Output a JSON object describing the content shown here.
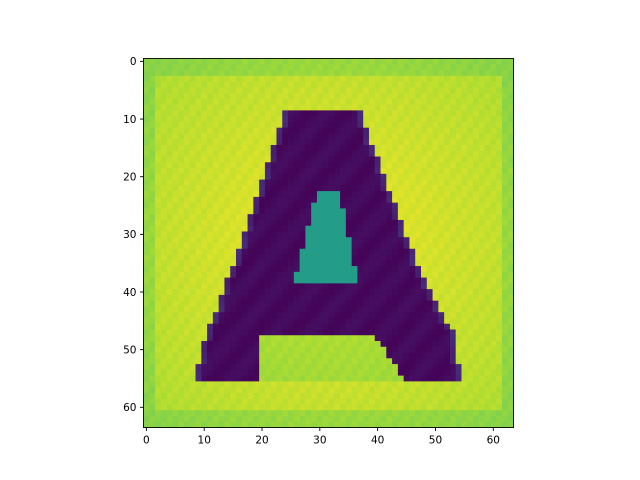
{
  "chart_data": {
    "type": "heatmap",
    "title": "",
    "xlabel": "",
    "ylabel": "",
    "colormap": "viridis",
    "grid": false,
    "image_shape": [
      64,
      64
    ],
    "xlim": [
      -0.5,
      63.5
    ],
    "ylim": [
      63.5,
      -0.5
    ],
    "xticks": [
      0,
      10,
      20,
      30,
      40,
      50,
      60
    ],
    "yticks": [
      0,
      10,
      20,
      30,
      40,
      50,
      60
    ],
    "xtick_labels": [
      "0",
      "10",
      "20",
      "30",
      "40",
      "50",
      "60"
    ],
    "ytick_labels": [
      "0",
      "10",
      "20",
      "30",
      "40",
      "50",
      "60"
    ],
    "value_scale": "normalized 0-1 (colormap position)",
    "background_level": 0.9,
    "letter_level": 0.03,
    "letter_depicted": "A",
    "letter_outer_boundary_rows": [
      {
        "y": 9,
        "x_left": 24,
        "x_right": 37
      },
      {
        "y": 38,
        "x_left": 14,
        "x_right": 48
      },
      {
        "y": 47,
        "x_left": 10.5,
        "x_right": 53
      },
      {
        "y": 55,
        "x_left": 8.5,
        "x_right": 54.5
      }
    ],
    "letter_counter_boundary_rows": [
      {
        "y": 23,
        "x_left": 29.5,
        "x_right": 33.5
      },
      {
        "y": 38,
        "x_left": 25.5,
        "x_right": 36.5
      }
    ],
    "letter_crossbar_rows": [
      38,
      47
    ],
    "letter_leg_gap_rows": [
      {
        "y": 47,
        "x_left": 20,
        "x_right": 39
      },
      {
        "y": 55,
        "x_left": 19.5,
        "x_right": 44.5
      }
    ]
  }
}
